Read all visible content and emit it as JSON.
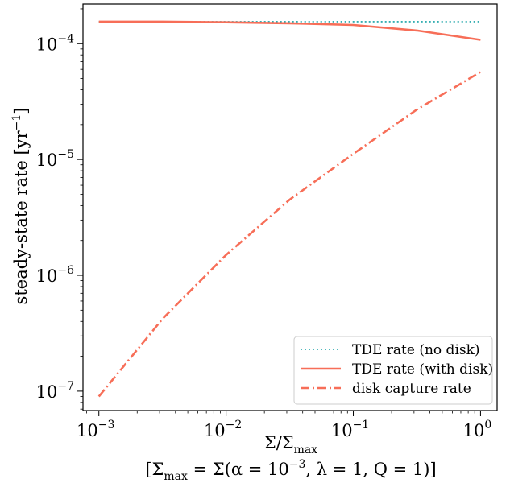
{
  "chart_data": {
    "type": "line",
    "x_scale": "log",
    "y_scale": "log",
    "xlim": [
      0.00075,
      1.35
    ],
    "ylim": [
      6.8e-08,
      0.00022
    ],
    "xlabel": {
      "main": "Σ/Σ",
      "main_sub": "max",
      "line2": "[Σ",
      "line2_sub": "max",
      "line2_rest": " = Σ(α = 10",
      "line2_exp": "−3",
      "line2_tail": ", λ = 1, Q = 1)]"
    },
    "ylabel": {
      "main": "steady-state rate [yr",
      "exp": "−1",
      "tail": "]"
    },
    "x_ticks": [
      {
        "value": 0.001,
        "base": "10",
        "exp": "−3"
      },
      {
        "value": 0.01,
        "base": "10",
        "exp": "−2"
      },
      {
        "value": 0.1,
        "base": "10",
        "exp": "−1"
      },
      {
        "value": 1,
        "base": "10",
        "exp": "0"
      }
    ],
    "y_ticks": [
      {
        "value": 1e-07,
        "base": "10",
        "exp": "−7"
      },
      {
        "value": 1e-06,
        "base": "10",
        "exp": "−6"
      },
      {
        "value": 1e-05,
        "base": "10",
        "exp": "−5"
      },
      {
        "value": 0.0001,
        "base": "10",
        "exp": "−4"
      }
    ],
    "series": [
      {
        "name": "TDE rate (no disk)",
        "color": "#17a2a6",
        "style": "dotted",
        "x": [
          0.001,
          0.00316,
          0.01,
          0.0316,
          0.1,
          0.316,
          1
        ],
        "y": [
          0.000155,
          0.000155,
          0.000155,
          0.000155,
          0.000155,
          0.000155,
          0.000155
        ]
      },
      {
        "name": "TDE rate (with disk)",
        "color": "#f76e58",
        "style": "solid",
        "x": [
          0.001,
          0.00316,
          0.01,
          0.0316,
          0.1,
          0.316,
          1
        ],
        "y": [
          0.000155,
          0.000155,
          0.000153,
          0.00015,
          0.000145,
          0.00013,
          0.000108
        ]
      },
      {
        "name": "disk capture rate",
        "color": "#f76e58",
        "style": "dashdot",
        "x": [
          0.001,
          0.00316,
          0.01,
          0.0316,
          0.1,
          0.316,
          1
        ],
        "y": [
          9e-08,
          4.2e-07,
          1.5e-06,
          4.5e-06,
          1.12e-05,
          2.7e-05,
          5.7e-05
        ]
      }
    ],
    "legend_position": "lower right",
    "grid": false
  }
}
